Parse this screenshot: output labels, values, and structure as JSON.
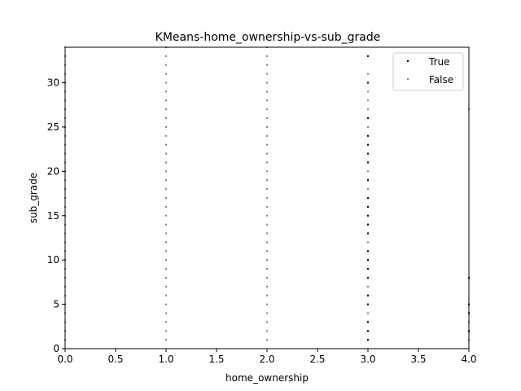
{
  "chart_data": {
    "type": "scatter",
    "title": "KMeans-home_ownership-vs-sub_grade",
    "xlabel": "home_ownership",
    "ylabel": "sub_grade",
    "xlim": [
      0,
      4
    ],
    "ylim": [
      0,
      34
    ],
    "xticks": [
      "0.0",
      "0.5",
      "1.0",
      "1.5",
      "2.0",
      "2.5",
      "3.0",
      "3.5",
      "4.0"
    ],
    "yticks": [
      "0",
      "5",
      "10",
      "15",
      "20",
      "25",
      "30"
    ],
    "legend_position": "top-right",
    "grid": false,
    "series": [
      {
        "name": "True",
        "color": "#000000",
        "points": [
          [
            3,
            1
          ],
          [
            3,
            2
          ],
          [
            3,
            3
          ],
          [
            3,
            5
          ],
          [
            3,
            6
          ],
          [
            3,
            8
          ],
          [
            3,
            9
          ],
          [
            3,
            10
          ],
          [
            3,
            11
          ],
          [
            3,
            13
          ],
          [
            3,
            14
          ],
          [
            3,
            15
          ],
          [
            3,
            16
          ],
          [
            3,
            17
          ],
          [
            3,
            19
          ],
          [
            3,
            21
          ],
          [
            3,
            22
          ],
          [
            3,
            23
          ],
          [
            3,
            24
          ],
          [
            3,
            26
          ],
          [
            3,
            30
          ],
          [
            3,
            33
          ],
          [
            4,
            2
          ],
          [
            4,
            4
          ],
          [
            4,
            5
          ],
          [
            4,
            8
          ]
        ]
      },
      {
        "name": "False",
        "color": "#808080",
        "points": [
          [
            0,
            1
          ],
          [
            0,
            2
          ],
          [
            0,
            3
          ],
          [
            0,
            4
          ],
          [
            0,
            5
          ],
          [
            0,
            6
          ],
          [
            0,
            7
          ],
          [
            0,
            8
          ],
          [
            0,
            9
          ],
          [
            0,
            10
          ],
          [
            0,
            11
          ],
          [
            0,
            12
          ],
          [
            0,
            13
          ],
          [
            0,
            14
          ],
          [
            0,
            15
          ],
          [
            0,
            16
          ],
          [
            0,
            17
          ],
          [
            0,
            18
          ],
          [
            0,
            19
          ],
          [
            0,
            20
          ],
          [
            0,
            21
          ],
          [
            0,
            22
          ],
          [
            0,
            23
          ],
          [
            0,
            24
          ],
          [
            0,
            25
          ],
          [
            0,
            26
          ],
          [
            0,
            27
          ],
          [
            0,
            28
          ],
          [
            0,
            29
          ],
          [
            0,
            30
          ],
          [
            0,
            31
          ],
          [
            0,
            32
          ],
          [
            0,
            33
          ],
          [
            0,
            34
          ],
          [
            1,
            1
          ],
          [
            1,
            2
          ],
          [
            1,
            3
          ],
          [
            1,
            4
          ],
          [
            1,
            5
          ],
          [
            1,
            6
          ],
          [
            1,
            7
          ],
          [
            1,
            8
          ],
          [
            1,
            9
          ],
          [
            1,
            10
          ],
          [
            1,
            11
          ],
          [
            1,
            12
          ],
          [
            1,
            13
          ],
          [
            1,
            14
          ],
          [
            1,
            15
          ],
          [
            1,
            16
          ],
          [
            1,
            17
          ],
          [
            1,
            18
          ],
          [
            1,
            19
          ],
          [
            1,
            20
          ],
          [
            1,
            21
          ],
          [
            1,
            22
          ],
          [
            1,
            23
          ],
          [
            1,
            24
          ],
          [
            1,
            25
          ],
          [
            1,
            26
          ],
          [
            1,
            27
          ],
          [
            1,
            28
          ],
          [
            1,
            29
          ],
          [
            1,
            30
          ],
          [
            1,
            31
          ],
          [
            1,
            32
          ],
          [
            1,
            33
          ],
          [
            1,
            34
          ],
          [
            2,
            1
          ],
          [
            2,
            2
          ],
          [
            2,
            3
          ],
          [
            2,
            4
          ],
          [
            2,
            5
          ],
          [
            2,
            6
          ],
          [
            2,
            7
          ],
          [
            2,
            8
          ],
          [
            2,
            9
          ],
          [
            2,
            10
          ],
          [
            2,
            11
          ],
          [
            2,
            12
          ],
          [
            2,
            13
          ],
          [
            2,
            14
          ],
          [
            2,
            15
          ],
          [
            2,
            16
          ],
          [
            2,
            17
          ],
          [
            2,
            18
          ],
          [
            2,
            19
          ],
          [
            2,
            20
          ],
          [
            2,
            21
          ],
          [
            2,
            22
          ],
          [
            2,
            23
          ],
          [
            2,
            24
          ],
          [
            2,
            25
          ],
          [
            2,
            26
          ],
          [
            2,
            27
          ],
          [
            2,
            28
          ],
          [
            2,
            29
          ],
          [
            2,
            30
          ],
          [
            2,
            31
          ],
          [
            2,
            32
          ],
          [
            2,
            33
          ],
          [
            2,
            34
          ],
          [
            3,
            1
          ],
          [
            3,
            2
          ],
          [
            3,
            3
          ],
          [
            3,
            4
          ],
          [
            3,
            5
          ],
          [
            3,
            6
          ],
          [
            3,
            7
          ],
          [
            3,
            8
          ],
          [
            3,
            9
          ],
          [
            3,
            10
          ],
          [
            3,
            11
          ],
          [
            3,
            12
          ],
          [
            3,
            13
          ],
          [
            3,
            14
          ],
          [
            3,
            15
          ],
          [
            3,
            16
          ],
          [
            3,
            17
          ],
          [
            3,
            18
          ],
          [
            3,
            19
          ],
          [
            3,
            20
          ],
          [
            3,
            21
          ],
          [
            3,
            22
          ],
          [
            3,
            23
          ],
          [
            3,
            24
          ],
          [
            3,
            25
          ],
          [
            3,
            26
          ],
          [
            3,
            27
          ],
          [
            3,
            28
          ],
          [
            3,
            29
          ],
          [
            3,
            30
          ],
          [
            3,
            31
          ],
          [
            4,
            1
          ],
          [
            4,
            2
          ],
          [
            4,
            3
          ],
          [
            4,
            27
          ]
        ]
      }
    ]
  }
}
